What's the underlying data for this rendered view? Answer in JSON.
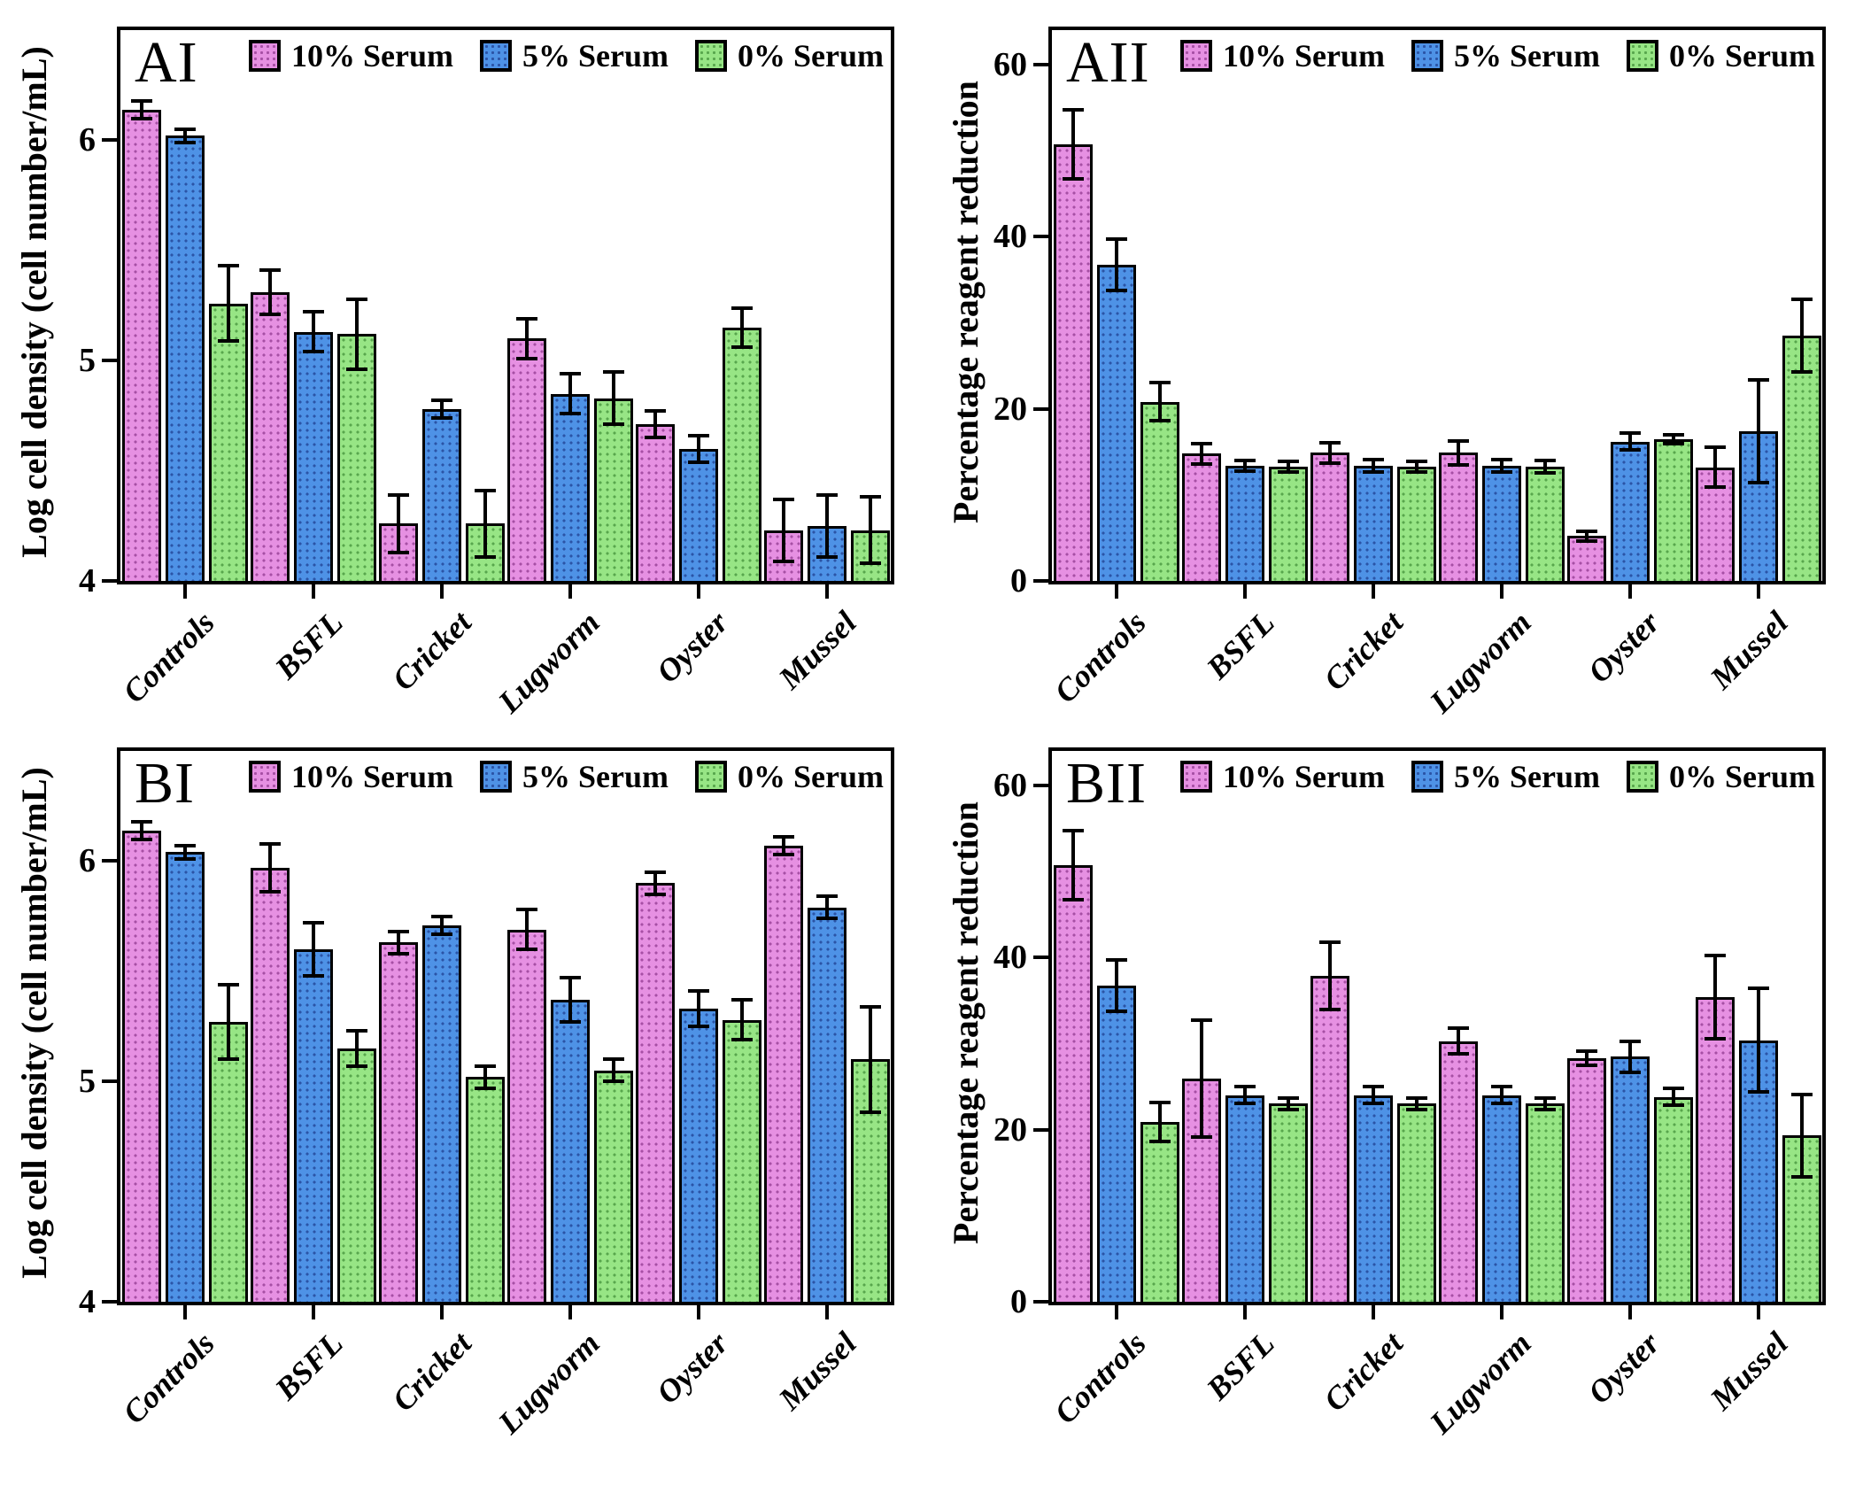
{
  "series_colors": [
    {
      "name": "10% Serum",
      "fill": "#E690E2"
    },
    {
      "name": "5% Serum",
      "fill": "#4E92E6"
    },
    {
      "name": "0% Serum",
      "fill": "#97E585"
    }
  ],
  "axis_color": "#000000",
  "chart_data": [
    {
      "id": "AI",
      "panel_label": "AI",
      "type": "bar",
      "ylabel": "Log cell density (cell number/mL)",
      "xlabel": "",
      "ylim": [
        4,
        6.5
      ],
      "yticks": [
        4,
        5,
        6
      ],
      "grid": false,
      "legend_position": "top-right-inside",
      "categories": [
        "Controls",
        "BSFL",
        "Cricket",
        "Lugworm",
        "Oyster",
        "Mussel"
      ],
      "series": [
        {
          "name": "10% Serum",
          "values": [
            6.14,
            5.31,
            4.26,
            5.1,
            4.71,
            4.23
          ],
          "errors": [
            0.04,
            0.1,
            0.13,
            0.09,
            0.06,
            0.14
          ]
        },
        {
          "name": "5% Serum",
          "values": [
            6.02,
            5.13,
            4.78,
            4.85,
            4.6,
            4.25
          ],
          "errors": [
            0.03,
            0.09,
            0.04,
            0.09,
            0.06,
            0.14
          ]
        },
        {
          "name": "0% Serum",
          "values": [
            5.26,
            5.12,
            4.26,
            4.83,
            5.15,
            4.23
          ],
          "errors": [
            0.17,
            0.16,
            0.15,
            0.12,
            0.09,
            0.15
          ]
        }
      ]
    },
    {
      "id": "AII",
      "panel_label": "AII",
      "type": "bar",
      "ylabel": "Percentage reagent reduction",
      "xlabel": "",
      "ylim": [
        0,
        64
      ],
      "yticks": [
        0,
        20,
        40,
        60
      ],
      "grid": false,
      "legend_position": "top-right-inside",
      "categories": [
        "Controls",
        "BSFL",
        "Cricket",
        "Lugworm",
        "Oyster",
        "Mussel"
      ],
      "series": [
        {
          "name": "10% Serum",
          "values": [
            50.7,
            14.8,
            14.9,
            14.9,
            5.2,
            13.2
          ],
          "errors": [
            4.0,
            1.2,
            1.2,
            1.4,
            0.6,
            2.3
          ]
        },
        {
          "name": "5% Serum",
          "values": [
            36.7,
            13.4,
            13.4,
            13.4,
            16.2,
            17.4
          ],
          "errors": [
            3.0,
            0.6,
            0.7,
            0.7,
            1.0,
            6.0
          ]
        },
        {
          "name": "0% Serum",
          "values": [
            20.8,
            13.3,
            13.3,
            13.3,
            16.5,
            28.5
          ],
          "errors": [
            2.2,
            0.6,
            0.6,
            0.7,
            0.5,
            4.2
          ]
        }
      ]
    },
    {
      "id": "BI",
      "panel_label": "BI",
      "type": "bar",
      "ylabel": "Log cell density (cell number/mL)",
      "xlabel": "",
      "ylim": [
        4,
        6.5
      ],
      "yticks": [
        4,
        5,
        6
      ],
      "grid": false,
      "legend_position": "top-right-inside",
      "categories": [
        "Controls",
        "BSFL",
        "Cricket",
        "Lugworm",
        "Oyster",
        "Mussel"
      ],
      "series": [
        {
          "name": "10% Serum",
          "values": [
            6.14,
            5.97,
            5.63,
            5.69,
            5.9,
            6.07
          ],
          "errors": [
            0.04,
            0.11,
            0.05,
            0.09,
            0.05,
            0.04
          ]
        },
        {
          "name": "5% Serum",
          "values": [
            6.04,
            5.6,
            5.71,
            5.37,
            5.33,
            5.79
          ],
          "errors": [
            0.03,
            0.12,
            0.04,
            0.1,
            0.08,
            0.05
          ]
        },
        {
          "name": "0% Serum",
          "values": [
            5.27,
            5.15,
            5.02,
            5.05,
            5.28,
            5.1
          ],
          "errors": [
            0.17,
            0.08,
            0.05,
            0.05,
            0.09,
            0.24
          ]
        }
      ]
    },
    {
      "id": "BII",
      "panel_label": "BII",
      "type": "bar",
      "ylabel": "Percentage reagent reduction",
      "xlabel": "",
      "ylim": [
        0,
        64
      ],
      "yticks": [
        0,
        20,
        40,
        60
      ],
      "grid": false,
      "legend_position": "top-right-inside",
      "categories": [
        "Controls",
        "BSFL",
        "Cricket",
        "Lugworm",
        "Oyster",
        "Mussel"
      ],
      "series": [
        {
          "name": "10% Serum",
          "values": [
            50.7,
            25.9,
            37.9,
            30.3,
            28.3,
            35.4
          ],
          "errors": [
            4.0,
            6.8,
            3.9,
            1.5,
            0.8,
            4.8
          ]
        },
        {
          "name": "5% Serum",
          "values": [
            36.7,
            24.0,
            24.0,
            24.0,
            28.5,
            30.4
          ],
          "errors": [
            3.0,
            1.0,
            1.0,
            1.0,
            1.8,
            6.0
          ]
        },
        {
          "name": "0% Serum",
          "values": [
            20.9,
            23.0,
            23.0,
            23.0,
            23.8,
            19.3
          ],
          "errors": [
            2.3,
            0.7,
            0.7,
            0.7,
            1.0,
            4.8
          ]
        }
      ]
    }
  ]
}
